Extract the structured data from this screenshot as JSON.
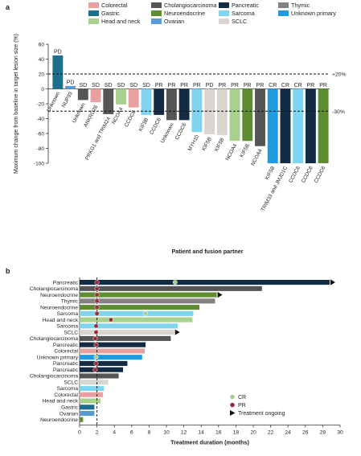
{
  "panel_a_letter": "a",
  "panel_b_letter": "b",
  "legend_a": [
    {
      "label": "Colorectal",
      "color": "#e8a0a0"
    },
    {
      "label": "Gastric",
      "color": "#1c6f8e"
    },
    {
      "label": "Head and neck",
      "color": "#a9d18e"
    },
    {
      "label": "Cholangiocarcinoma",
      "color": "#555555"
    },
    {
      "label": "Neuroendocrine",
      "color": "#5e8c31"
    },
    {
      "label": "Ovarian",
      "color": "#5b9bd5"
    },
    {
      "label": "Pancreatic",
      "color": "#132c44"
    },
    {
      "label": "Sarcoma",
      "color": "#7fd4ef"
    },
    {
      "label": "SCLC",
      "color": "#d9d6d0"
    },
    {
      "label": "Thymic",
      "color": "#828282"
    },
    {
      "label": "Unknown primary",
      "color": "#1f9be0"
    }
  ],
  "legend_b": [
    {
      "label": "CR",
      "symbol": "dot",
      "color": "#a9d18e"
    },
    {
      "label": "PR",
      "symbol": "dot",
      "color": "#9b2c3a"
    },
    {
      "label": "Treatment ongoing",
      "symbol": "triangle",
      "color": "#111111"
    }
  ],
  "chart_data": [
    {
      "type": "bar",
      "title": "",
      "ylabel": "Maximum change from baseline in target lesion size (%)",
      "xlabel": "Patient and fusion partner",
      "ylim": [
        -100,
        60
      ],
      "yticks": [
        -100,
        -80,
        -60,
        -40,
        -20,
        0,
        20,
        40,
        60
      ],
      "reference_lines": [
        {
          "value": 20,
          "label": "+20%"
        },
        {
          "value": -30,
          "label": "-30%"
        }
      ],
      "bars": [
        {
          "partner": "Unknown",
          "value": 45,
          "response": "PD",
          "color": "#1c6f8e"
        },
        {
          "partner": "NUP93",
          "value": 4,
          "response": "PD",
          "color": "#5b9bd5"
        },
        {
          "partner": "Unknown",
          "value": -15,
          "response": "SD",
          "color": "#555555"
        },
        {
          "partner": "ANKRD26",
          "value": -18,
          "response": "SD",
          "color": "#e8a0a0"
        },
        {
          "partner": "PRKG1 and TRIM24",
          "value": -34,
          "response": "SD",
          "color": "#555555"
        },
        {
          "partner": "NCOA4",
          "value": -21,
          "response": "SD",
          "color": "#a9d18e"
        },
        {
          "partner": "CCDC6",
          "value": -25,
          "response": "SD",
          "color": "#e8a0a0"
        },
        {
          "partner": "KIF5B",
          "value": -35,
          "response": "SD",
          "color": "#7fd4ef"
        },
        {
          "partner": "CCDC6",
          "value": -35,
          "response": "PR",
          "color": "#132c44"
        },
        {
          "partner": "Unknown",
          "value": -42,
          "response": "PR",
          "color": "#555555"
        },
        {
          "partner": "CCDC6",
          "value": -42,
          "response": "PR",
          "color": "#132c44"
        },
        {
          "partner": "MYH10",
          "value": -58,
          "response": "PR",
          "color": "#7fd4ef"
        },
        {
          "partner": "KIF5B",
          "value": -61,
          "response": "PD",
          "color": "#d9d6d0"
        },
        {
          "partner": "KIF5B",
          "value": -62,
          "response": "PR",
          "color": "#d9d6d0"
        },
        {
          "partner": "NCOA4",
          "value": -70,
          "response": "PR",
          "color": "#a9d18e"
        },
        {
          "partner": "KIF5B",
          "value": -70,
          "response": "PR",
          "color": "#5e8c31"
        },
        {
          "partner": "NCOA4",
          "value": -77,
          "response": "PR",
          "color": "#555555"
        },
        {
          "partner": "KIF5B",
          "value": -100,
          "response": "CR",
          "color": "#1f9be0"
        },
        {
          "partner": "TRIM33 and JMJD1C",
          "value": -100,
          "response": "CR",
          "color": "#132c44"
        },
        {
          "partner": "CCDC6",
          "value": -100,
          "response": "CR",
          "color": "#7fd4ef"
        },
        {
          "partner": "CCDC6",
          "value": -100,
          "response": "PR",
          "color": "#132c44"
        },
        {
          "partner": "CCDC6",
          "value": -100,
          "response": "PR",
          "color": "#5e8c31"
        }
      ]
    },
    {
      "type": "bar",
      "orientation": "horizontal",
      "xlabel": "Treatment duration (months)",
      "xlim": [
        0,
        30
      ],
      "xticks": [
        0,
        2,
        4,
        6,
        8,
        10,
        12,
        14,
        16,
        18,
        20,
        22,
        24,
        26,
        28,
        30
      ],
      "reference_line_x": 2,
      "rows": [
        {
          "tumor": "Pancreatic",
          "months": 28.8,
          "color": "#132c44",
          "markers": [
            {
              "type": "PR",
              "at": 2.0
            },
            {
              "type": "CR",
              "at": 11.0
            }
          ],
          "ongoing": true
        },
        {
          "tumor": "Cholangiocarcinoma",
          "months": 21.0,
          "color": "#555555",
          "markers": [
            {
              "type": "PR",
              "at": 2.0
            }
          ],
          "ongoing": false
        },
        {
          "tumor": "Neuroendocrine",
          "months": 15.8,
          "color": "#5e8c31",
          "markers": [
            {
              "type": "PR",
              "at": 2.0
            }
          ],
          "ongoing": true
        },
        {
          "tumor": "Thymic",
          "months": 15.6,
          "color": "#828282",
          "markers": [
            {
              "type": "PR",
              "at": 2.0
            }
          ],
          "ongoing": false
        },
        {
          "tumor": "Neuroendocrine",
          "months": 13.8,
          "color": "#5e8c31",
          "markers": [
            {
              "type": "PR",
              "at": 2.0
            }
          ],
          "ongoing": false
        },
        {
          "tumor": "Sarcoma",
          "months": 13.1,
          "color": "#7fd4ef",
          "markers": [
            {
              "type": "PR",
              "at": 2.0
            },
            {
              "type": "CR",
              "at": 7.6
            }
          ],
          "ongoing": false
        },
        {
          "tumor": "Head and neck",
          "months": 13.0,
          "color": "#a9d18e",
          "markers": [
            {
              "type": "PR",
              "at": 3.6
            }
          ],
          "ongoing": false
        },
        {
          "tumor": "Sarcoma",
          "months": 11.3,
          "color": "#7fd4ef",
          "markers": [
            {
              "type": "PR",
              "at": 1.9
            }
          ],
          "ongoing": false
        },
        {
          "tumor": "SCLC",
          "months": 10.9,
          "color": "#d9d6d0",
          "markers": [
            {
              "type": "PR",
              "at": 1.9
            }
          ],
          "ongoing": true
        },
        {
          "tumor": "Cholangiocarcinoma",
          "months": 10.5,
          "color": "#555555",
          "markers": [
            {
              "type": "PR",
              "at": 1.8
            }
          ],
          "ongoing": false
        },
        {
          "tumor": "Pancreatic",
          "months": 7.6,
          "color": "#132c44",
          "markers": [
            {
              "type": "PR",
              "at": 1.9
            }
          ],
          "ongoing": false
        },
        {
          "tumor": "Colorectal",
          "months": 7.5,
          "color": "#e8a0a0",
          "markers": [],
          "ongoing": false
        },
        {
          "tumor": "Unknown primary",
          "months": 7.2,
          "color": "#1f9be0",
          "markers": [
            {
              "type": "CR",
              "at": 1.9
            }
          ],
          "ongoing": false
        },
        {
          "tumor": "Pancreatic",
          "months": 5.5,
          "color": "#132c44",
          "markers": [
            {
              "type": "PR",
              "at": 1.9
            }
          ],
          "ongoing": false
        },
        {
          "tumor": "Pancreatic",
          "months": 5.0,
          "color": "#132c44",
          "markers": [
            {
              "type": "PR",
              "at": 1.8
            }
          ],
          "ongoing": false
        },
        {
          "tumor": "Cholangiocarcinoma",
          "months": 4.5,
          "color": "#555555",
          "markers": [],
          "ongoing": false
        },
        {
          "tumor": "SCLC",
          "months": 3.3,
          "color": "#d9d6d0",
          "markers": [],
          "ongoing": false
        },
        {
          "tumor": "Sarcoma",
          "months": 2.8,
          "color": "#7fd4ef",
          "markers": [],
          "ongoing": false
        },
        {
          "tumor": "Colorectal",
          "months": 2.7,
          "color": "#e8a0a0",
          "markers": [],
          "ongoing": false
        },
        {
          "tumor": "Head and neck",
          "months": 2.4,
          "color": "#a9d18e",
          "markers": [],
          "ongoing": false
        },
        {
          "tumor": "Gastric",
          "months": 1.7,
          "color": "#1c6f8e",
          "markers": [],
          "ongoing": false
        },
        {
          "tumor": "Ovarian",
          "months": 1.7,
          "color": "#5b9bd5",
          "markers": [],
          "ongoing": false
        },
        {
          "tumor": "Neuroendocrine",
          "months": 0.4,
          "color": "#5e8c31",
          "markers": [],
          "ongoing": false
        }
      ]
    }
  ]
}
